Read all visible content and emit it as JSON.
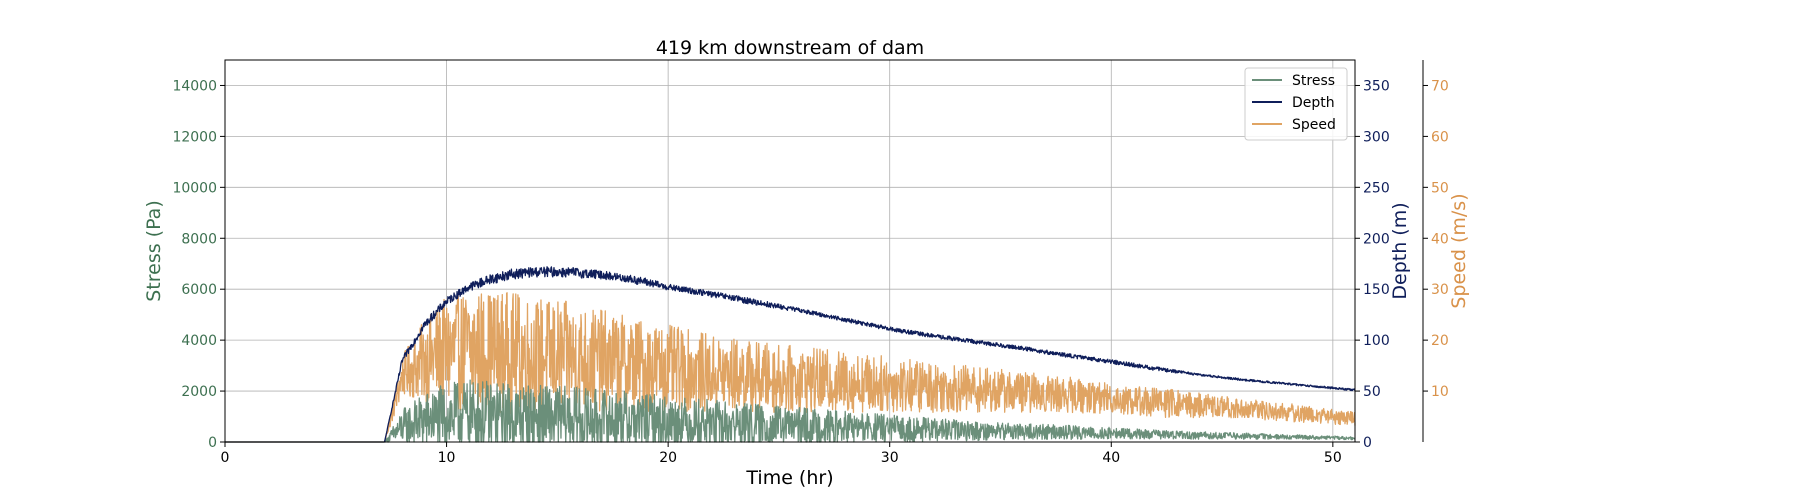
{
  "chart_data": {
    "type": "line",
    "title": "419 km downstream of dam",
    "xlabel": "Time (hr)",
    "xlim": [
      0,
      51
    ],
    "xticks": [
      0,
      10,
      20,
      30,
      40,
      50
    ],
    "grid": true,
    "legend_position": "top-right",
    "axes": {
      "stress": {
        "label": "Stress (Pa)",
        "color": "#3d7050",
        "ylim": [
          0,
          15000
        ],
        "ticks": [
          0,
          2000,
          4000,
          6000,
          8000,
          10000,
          12000,
          14000
        ],
        "side": "left"
      },
      "depth": {
        "label": "Depth (m)",
        "color": "#0f1e5a",
        "ylim": [
          0,
          375
        ],
        "ticks": [
          0,
          50,
          100,
          150,
          200,
          250,
          300,
          350
        ],
        "side": "right"
      },
      "speed": {
        "label": "Speed (m/s)",
        "color": "#d9924a",
        "ylim": [
          0,
          75
        ],
        "ticks": [
          10,
          20,
          30,
          40,
          50,
          60,
          70
        ],
        "side": "right-offset"
      }
    },
    "series": [
      {
        "name": "Stress",
        "axis": "stress",
        "color": "#6b8f7a",
        "onset_x": 7.2,
        "x": [
          0,
          7.2,
          8,
          9,
          10,
          11,
          12,
          13,
          14,
          15,
          16,
          17,
          18,
          19,
          20,
          22,
          24,
          26,
          28,
          30,
          32,
          34,
          36,
          38,
          40,
          42,
          44,
          46,
          48,
          50,
          51
        ],
        "mean": [
          0,
          0,
          600,
          850,
          1000,
          1050,
          1000,
          980,
          950,
          930,
          900,
          880,
          860,
          820,
          780,
          720,
          660,
          610,
          560,
          520,
          480,
          440,
          410,
          380,
          340,
          300,
          260,
          230,
          200,
          170,
          150
        ],
        "amp": [
          0,
          0,
          700,
          1100,
          1300,
          1400,
          1400,
          1350,
          1300,
          1300,
          1250,
          1200,
          1150,
          1100,
          1050,
          950,
          850,
          750,
          650,
          550,
          450,
          380,
          330,
          280,
          230,
          180,
          150,
          120,
          90,
          70,
          60
        ]
      },
      {
        "name": "Depth",
        "axis": "depth",
        "color": "#0f1e5a",
        "onset_x": 7.2,
        "x": [
          0,
          7.2,
          8,
          9,
          10,
          11,
          12,
          13,
          14,
          15,
          16,
          17,
          18,
          19,
          20,
          22,
          24,
          26,
          28,
          30,
          32,
          34,
          36,
          38,
          40,
          42,
          44,
          46,
          48,
          50,
          51
        ],
        "mean": [
          0,
          0,
          80,
          115,
          138,
          152,
          160,
          165,
          167,
          167,
          166,
          164,
          161,
          157,
          152,
          145,
          137,
          129,
          120,
          111,
          104,
          98,
          92,
          85,
          79,
          72,
          66,
          61,
          57,
          53,
          51
        ],
        "amp": [
          0,
          0,
          3,
          4,
          4,
          4,
          5,
          5,
          5,
          5,
          5,
          4,
          4,
          4,
          3,
          3,
          3,
          2,
          2,
          2,
          2,
          2,
          2,
          2,
          2,
          2,
          1,
          1,
          1,
          1,
          1
        ]
      },
      {
        "name": "Speed",
        "axis": "speed",
        "color": "#e0a463",
        "onset_x": 7.2,
        "x": [
          0,
          7.2,
          8,
          9,
          10,
          11,
          12,
          13,
          14,
          15,
          16,
          17,
          18,
          19,
          20,
          22,
          24,
          26,
          28,
          30,
          32,
          34,
          36,
          38,
          40,
          42,
          44,
          46,
          48,
          50,
          51
        ],
        "mean": [
          0,
          0,
          13,
          16,
          17.5,
          18,
          18,
          17.5,
          17,
          17,
          16.5,
          16,
          15.5,
          15,
          14.5,
          13.5,
          12.8,
          12.2,
          11.8,
          11.3,
          10.8,
          10.3,
          9.8,
          9.3,
          8.5,
          7.8,
          7.2,
          6.5,
          5.8,
          5.0,
          4.5
        ],
        "amp": [
          0,
          0,
          4,
          8,
          11,
          12,
          12,
          12,
          11.5,
          11,
          10.5,
          10,
          9.5,
          9,
          8.5,
          7.5,
          7,
          6.5,
          6,
          5.5,
          5,
          4.5,
          4,
          3.5,
          3,
          3,
          2.5,
          2,
          1.8,
          1.5,
          1.4
        ]
      }
    ]
  }
}
